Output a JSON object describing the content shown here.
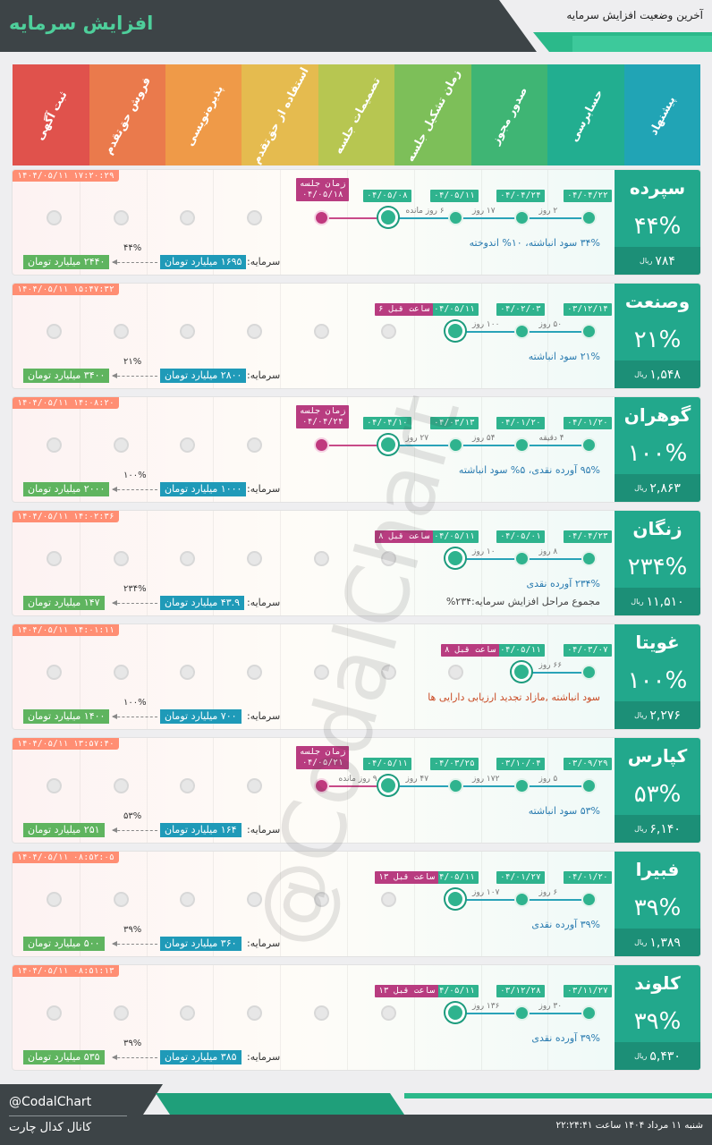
{
  "header": {
    "title": "افزایش سرمایه",
    "subtitle": "آخرین وضعیت افزایش سرمایه"
  },
  "stages": [
    {
      "label": "پیشنهاد",
      "color": "#21a4b5"
    },
    {
      "label": "حسابرسی",
      "color": "#22ae90"
    },
    {
      "label": "صدور مجوز",
      "color": "#3fb574"
    },
    {
      "label": "زمان تشکیل جلسه",
      "color": "#7dbf59"
    },
    {
      "label": "تصمیمات جلسه",
      "color": "#b7c651"
    },
    {
      "label": "استفاده از حق‌تقدم",
      "color": "#e5bb4f"
    },
    {
      "label": "پذیره‌نویسی",
      "color": "#ef9a48"
    },
    {
      "label": "فروش حق‌تقدم",
      "color": "#ea7a4c"
    },
    {
      "label": "ثبت آگهی",
      "color": "#e0524c"
    }
  ],
  "rows": [
    {
      "name": "سپرده",
      "percent": "۴۴%",
      "price": "۷۸۴",
      "rial": "ریال",
      "stamp": "۱۴۰۴/۰۵/۱۱ ۱۷:۲۰:۲۹",
      "desc": "۳۴% سود انباشته، ۱۰% اندوخته",
      "desc_red": false,
      "desc2": "",
      "dates": [
        "۰۴/۰۴/۲۲",
        "۰۴/۰۴/۲۴",
        "۰۴/۰۵/۱۱",
        "۰۴/۰۵/۰۸"
      ],
      "gaps": [
        "۲ روز",
        "۱۷ روز",
        "۶ روز مانده"
      ],
      "meeting": {
        "label": "زمان جلسه",
        "date": "۰۴/۰۵/۱۸"
      },
      "ago": "",
      "capital_label": "سرمایه:",
      "capital_now": "۱۶۹۵ میلیارد تومان",
      "capital_new": "۲۴۴۰ میلیارد تومان",
      "capital_pct": "۴۴%"
    },
    {
      "name": "وصنعت",
      "percent": "۲۱%",
      "price": "۱,۵۴۸",
      "rial": "ریال",
      "stamp": "۱۴۰۴/۰۵/۱۱ ۱۵:۴۷:۳۲",
      "desc": "۲۱% سود انباشته",
      "desc_red": false,
      "desc2": "",
      "dates": [
        "۰۳/۱۲/۱۴",
        "۰۴/۰۲/۰۳",
        "۰۴/۰۵/۱۱"
      ],
      "gaps": [
        "۵۰ روز",
        "۱۰۰ روز"
      ],
      "meeting": null,
      "ago": "۶ ساعت قبل",
      "capital_label": "سرمایه:",
      "capital_now": "۲۸۰۰ میلیارد تومان",
      "capital_new": "۳۴۰۰ میلیارد تومان",
      "capital_pct": "۲۱%"
    },
    {
      "name": "گوهران",
      "percent": "۱۰۰%",
      "price": "۲,۸۶۳",
      "rial": "ریال",
      "stamp": "۱۴۰۴/۰۵/۱۱ ۱۴:۰۸:۲۰",
      "desc": "۹۵% آورده نقدی، ۵% سود انباشته",
      "desc_red": false,
      "desc2": "",
      "dates": [
        "۰۴/۰۱/۲۰",
        "۰۴/۰۱/۲۰",
        "۰۴/۰۳/۱۳",
        "۰۴/۰۴/۱۰"
      ],
      "gaps": [
        "۴ دقیقه",
        "۵۴ روز",
        "۲۷ روز"
      ],
      "meeting": {
        "label": "زمان جلسه",
        "date": "۰۴/۰۴/۲۴"
      },
      "ago": "",
      "capital_label": "سرمایه:",
      "capital_now": "۱۰۰۰ میلیارد تومان",
      "capital_new": "۲۰۰۰ میلیارد تومان",
      "capital_pct": "۱۰۰%"
    },
    {
      "name": "زنگان",
      "percent": "۲۳۴%",
      "price": "۱۱,۵۱۰",
      "rial": "ریال",
      "stamp": "۱۴۰۴/۰۵/۱۱ ۱۴:۰۲:۳۶",
      "desc": "۲۳۴% آورده نقدی",
      "desc_red": false,
      "desc2": "مجموع مراحل افزایش سرمایه:۲۳۴%",
      "dates": [
        "۰۴/۰۴/۲۳",
        "۰۴/۰۵/۰۱",
        "۰۴/۰۵/۱۱"
      ],
      "gaps": [
        "۸ روز",
        "۱۰ روز"
      ],
      "meeting": null,
      "ago": "۸ ساعت قبل",
      "capital_label": "سرمایه:",
      "capital_now": "۴۳.۹ میلیارد تومان",
      "capital_new": "۱۴۷ میلیارد تومان",
      "capital_pct": "۲۳۴%"
    },
    {
      "name": "غویتا",
      "percent": "۱۰۰%",
      "price": "۲,۲۷۶",
      "rial": "ریال",
      "stamp": "۱۴۰۴/۰۵/۱۱ ۱۴:۰۱:۱۱",
      "desc": "سود انباشته ,مازاد تجدید ارزیابی دارایی ها",
      "desc_red": true,
      "desc2": "",
      "dates": [
        "۰۴/۰۳/۰۷",
        "۰۴/۰۵/۱۱"
      ],
      "gaps": [
        "۶۶ روز"
      ],
      "meeting": null,
      "ago": "۸ ساعت قبل",
      "capital_label": "سرمایه:",
      "capital_now": "۷۰۰ میلیارد تومان",
      "capital_new": "۱۴۰۰ میلیارد تومان",
      "capital_pct": "۱۰۰%"
    },
    {
      "name": "کپارس",
      "percent": "۵۳%",
      "price": "۶,۱۴۰",
      "rial": "ریال",
      "stamp": "۱۴۰۴/۰۵/۱۱ ۱۳:۵۷:۴۰",
      "desc": "۵۳% سود انباشته",
      "desc_red": false,
      "desc2": "",
      "dates": [
        "۰۳/۰۹/۲۹",
        "۰۳/۱۰/۰۴",
        "۰۴/۰۳/۲۵",
        "۰۴/۰۵/۱۱"
      ],
      "gaps": [
        "۵ روز",
        "۱۷۲ روز",
        "۴۷ روز",
        "۹ روز مانده"
      ],
      "meeting": {
        "label": "زمان جلسه",
        "date": "۰۴/۰۵/۲۱"
      },
      "ago": "",
      "capital_label": "سرمایه:",
      "capital_now": "۱۶۴ میلیارد تومان",
      "capital_new": "۲۵۱ میلیارد تومان",
      "capital_pct": "۵۳%"
    },
    {
      "name": "فبیرا",
      "percent": "۳۹%",
      "price": "۱,۳۸۹",
      "rial": "ریال",
      "stamp": "۱۴۰۴/۰۵/۱۱ ۰۸:۵۲:۰۵",
      "desc": "۳۹% آورده نقدی",
      "desc_red": false,
      "desc2": "",
      "dates": [
        "۰۴/۰۱/۲۰",
        "۰۴/۰۱/۲۷",
        "۰۴/۰۵/۱۱"
      ],
      "gaps": [
        "۶ روز",
        "۱۰۷ روز"
      ],
      "meeting": null,
      "ago": "۱۳ ساعت قبل",
      "capital_label": "سرمایه:",
      "capital_now": "۳۶۰ میلیارد تومان",
      "capital_new": "۵۰۰ میلیارد تومان",
      "capital_pct": "۳۹%"
    },
    {
      "name": "کلوند",
      "percent": "۳۹%",
      "price": "۵,۴۳۰",
      "rial": "ریال",
      "stamp": "۱۴۰۴/۰۵/۱۱ ۰۸:۵۱:۱۳",
      "desc": "۳۹% آورده نقدی",
      "desc_red": false,
      "desc2": "",
      "dates": [
        "۰۳/۱۱/۲۷",
        "۰۳/۱۲/۲۸",
        "۰۴/۰۵/۱۱"
      ],
      "gaps": [
        "۳۰ روز",
        "۱۳۶ روز"
      ],
      "meeting": null,
      "ago": "۱۳ ساعت قبل",
      "capital_label": "سرمایه:",
      "capital_now": "۳۸۵ میلیارد تومان",
      "capital_new": "۵۳۵ میلیارد تومان",
      "capital_pct": "۳۹%"
    }
  ],
  "watermark": "@CodalChart",
  "footer": {
    "handle": "@CodalChart",
    "channel": "کانال کدال چارت",
    "datetime": "شنبه ۱۱ مرداد ۱۴۰۴ ساعت ۲۲:۲۴:۴۱"
  }
}
